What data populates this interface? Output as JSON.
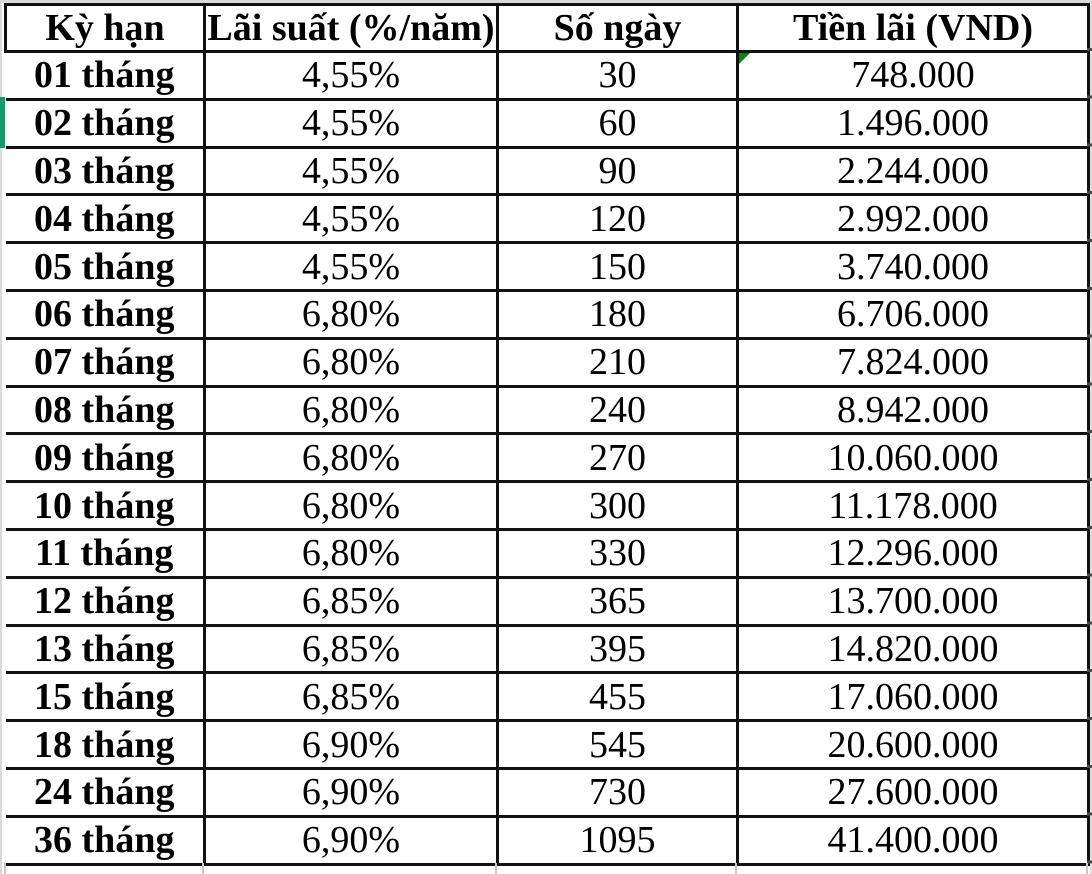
{
  "colors": {
    "grid_black": "#111111",
    "gridline_gray": "#d9d9d9",
    "row_indicator_green": "#189a68",
    "error_indicator_green": "#0c840c"
  },
  "table": {
    "headers": [
      "Kỳ hạn",
      "Lãi suất (%/năm)",
      "Số ngày",
      "Tiền lãi (VND)"
    ],
    "rows": [
      {
        "term": "01 tháng",
        "rate": "4,55%",
        "days": "30",
        "interest": "748.000"
      },
      {
        "term": "02 tháng",
        "rate": "4,55%",
        "days": "60",
        "interest": "1.496.000"
      },
      {
        "term": "03 tháng",
        "rate": "4,55%",
        "days": "90",
        "interest": "2.244.000"
      },
      {
        "term": "04 tháng",
        "rate": "4,55%",
        "days": "120",
        "interest": "2.992.000"
      },
      {
        "term": "05 tháng",
        "rate": "4,55%",
        "days": "150",
        "interest": "3.740.000"
      },
      {
        "term": "06 tháng",
        "rate": "6,80%",
        "days": "180",
        "interest": "6.706.000"
      },
      {
        "term": "07 tháng",
        "rate": "6,80%",
        "days": "210",
        "interest": "7.824.000"
      },
      {
        "term": "08 tháng",
        "rate": "6,80%",
        "days": "240",
        "interest": "8.942.000"
      },
      {
        "term": "09 tháng",
        "rate": "6,80%",
        "days": "270",
        "interest": "10.060.000"
      },
      {
        "term": "10 tháng",
        "rate": "6,80%",
        "days": "300",
        "interest": "11.178.000"
      },
      {
        "term": "11 tháng",
        "rate": "6,80%",
        "days": "330",
        "interest": "12.296.000"
      },
      {
        "term": "12 tháng",
        "rate": "6,85%",
        "days": "365",
        "interest": "13.700.000"
      },
      {
        "term": "13 tháng",
        "rate": "6,85%",
        "days": "395",
        "interest": "14.820.000"
      },
      {
        "term": "15 tháng",
        "rate": "6,85%",
        "days": "455",
        "interest": "17.060.000"
      },
      {
        "term": "18 tháng",
        "rate": "6,90%",
        "days": "545",
        "interest": "20.600.000"
      },
      {
        "term": "24 tháng",
        "rate": "6,90%",
        "days": "730",
        "interest": "27.600.000"
      },
      {
        "term": "36 tháng",
        "rate": "6,90%",
        "days": "1095",
        "interest": "41.400.000"
      }
    ]
  }
}
